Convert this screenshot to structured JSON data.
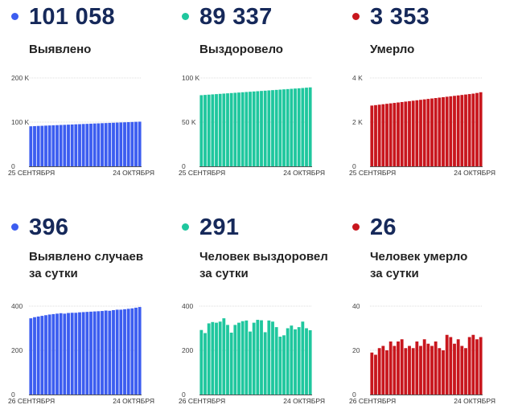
{
  "panels": [
    {
      "value": "101 058",
      "label_lines": [
        "Выявлено"
      ],
      "color": "#3c5df0",
      "chart_data": {
        "type": "bar",
        "ylim": [
          0,
          200000
        ],
        "y_ticks": [
          {
            "value": 0,
            "label": "0"
          },
          {
            "value": 100000,
            "label": "100 K"
          },
          {
            "value": 200000,
            "label": "200 K"
          }
        ],
        "x_start_label": "25 СЕНТЯБРЯ",
        "x_end_label": "24 ОКТЯБРЯ",
        "values": [
          90600,
          91000,
          91400,
          91700,
          92100,
          92500,
          92900,
          93200,
          93600,
          93900,
          94300,
          94700,
          95100,
          95400,
          95800,
          96100,
          96500,
          96900,
          97200,
          97600,
          97900,
          98300,
          98600,
          99000,
          99300,
          99600,
          100000,
          100300,
          100700,
          101058
        ]
      }
    },
    {
      "value": "89 337",
      "label_lines": [
        "Выздоровело"
      ],
      "color": "#1fc79e",
      "chart_data": {
        "type": "bar",
        "ylim": [
          0,
          100000
        ],
        "y_ticks": [
          {
            "value": 0,
            "label": "0"
          },
          {
            "value": 50000,
            "label": "50 K"
          },
          {
            "value": 100000,
            "label": "100 K"
          }
        ],
        "x_start_label": "25 СЕНТЯБРЯ",
        "x_end_label": "24 ОКТЯБРЯ",
        "values": [
          80500,
          80800,
          81100,
          81400,
          81700,
          82000,
          82300,
          82600,
          82900,
          83200,
          83500,
          83800,
          84100,
          84400,
          84700,
          85000,
          85300,
          85600,
          85900,
          86200,
          86500,
          86800,
          87100,
          87400,
          87700,
          88000,
          88300,
          88600,
          89000,
          89337
        ]
      }
    },
    {
      "value": "3 353",
      "label_lines": [
        "Умерло"
      ],
      "color": "#c8161d",
      "chart_data": {
        "type": "bar",
        "ylim": [
          0,
          4000
        ],
        "y_ticks": [
          {
            "value": 0,
            "label": "0"
          },
          {
            "value": 2000,
            "label": "2 K"
          },
          {
            "value": 4000,
            "label": "4 K"
          }
        ],
        "x_start_label": "25 СЕНТЯБРЯ",
        "x_end_label": "24 ОКТЯБРЯ",
        "values": [
          2750,
          2770,
          2790,
          2810,
          2830,
          2850,
          2870,
          2890,
          2910,
          2930,
          2950,
          2970,
          2990,
          3010,
          3030,
          3050,
          3070,
          3090,
          3110,
          3130,
          3150,
          3170,
          3190,
          3210,
          3230,
          3250,
          3270,
          3290,
          3320,
          3353
        ]
      }
    },
    {
      "value": "396",
      "label_lines": [
        "Выявлено случаев",
        "за сутки"
      ],
      "color": "#3c5df0",
      "chart_data": {
        "type": "bar",
        "ylim": [
          0,
          400
        ],
        "y_ticks": [
          {
            "value": 0,
            "label": "0"
          },
          {
            "value": 200,
            "label": "200"
          },
          {
            "value": 400,
            "label": "400"
          }
        ],
        "x_start_label": "26 СЕНТЯБРЯ",
        "x_end_label": "24 ОКТЯБРЯ",
        "values": [
          345,
          350,
          353,
          356,
          359,
          362,
          364,
          366,
          368,
          366,
          369,
          370,
          370,
          372,
          373,
          374,
          375,
          376,
          377,
          378,
          380,
          379,
          382,
          384,
          384,
          386,
          388,
          390,
          393,
          396
        ]
      }
    },
    {
      "value": "291",
      "label_lines": [
        "Человек выздоровел",
        "за сутки"
      ],
      "color": "#1fc79e",
      "chart_data": {
        "type": "bar",
        "ylim": [
          0,
          400
        ],
        "y_ticks": [
          {
            "value": 0,
            "label": "0"
          },
          {
            "value": 200,
            "label": "200"
          },
          {
            "value": 400,
            "label": "400"
          }
        ],
        "x_start_label": "26 СЕНТЯБРЯ",
        "x_end_label": "24 ОКТЯБРЯ",
        "values": [
          292,
          278,
          322,
          328,
          325,
          330,
          345,
          315,
          280,
          315,
          325,
          332,
          335,
          285,
          325,
          338,
          336,
          282,
          335,
          330,
          305,
          262,
          268,
          300,
          312,
          295,
          305,
          330,
          300,
          291
        ]
      }
    },
    {
      "value": "26",
      "label_lines": [
        "Человек умерло",
        "за сутки"
      ],
      "color": "#c8161d",
      "chart_data": {
        "type": "bar",
        "ylim": [
          0,
          40
        ],
        "y_ticks": [
          {
            "value": 0,
            "label": "0"
          },
          {
            "value": 20,
            "label": "20"
          },
          {
            "value": 40,
            "label": "40"
          }
        ],
        "x_start_label": "26 СЕНТЯБРЯ",
        "x_end_label": "24 ОКТЯБРЯ",
        "values": [
          19,
          18,
          21,
          22,
          20,
          24,
          22,
          24,
          25,
          21,
          22,
          21,
          24,
          22,
          25,
          23,
          22,
          24,
          21,
          20,
          27,
          26,
          23,
          25,
          22,
          21,
          26,
          27,
          25,
          26
        ]
      }
    }
  ]
}
